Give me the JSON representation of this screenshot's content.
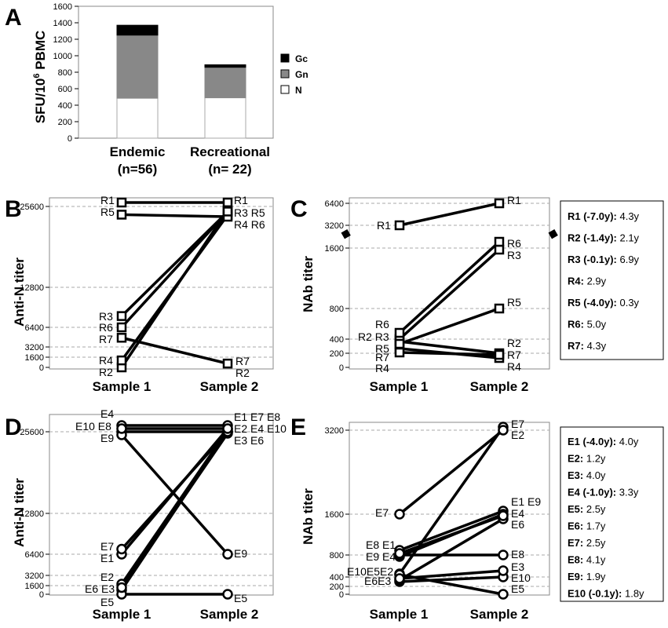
{
  "chart_data": [
    {
      "panel": "A",
      "type": "bar",
      "stacked": true,
      "ylabel": "SFU/10^6 PBMC",
      "ylabel_parts": [
        "SFU/10",
        "6",
        " PBMC"
      ],
      "ylim": [
        0,
        1600
      ],
      "yticks": [
        "0",
        "200",
        "400",
        "600",
        "800",
        "1000",
        "1200",
        "1400",
        "1600"
      ],
      "categories": [
        "Endemic\n(n=56)",
        "Recreational\n(n= 22)"
      ],
      "category_lines": [
        [
          "Endemic",
          "(n=56)"
        ],
        [
          "Recreational",
          "(n= 22)"
        ]
      ],
      "series": [
        {
          "name": "N",
          "values": [
            485,
            490
          ],
          "color": "#ffffff"
        },
        {
          "name": "Gn",
          "values": [
            765,
            370
          ],
          "color": "#888888"
        },
        {
          "name": "Gc",
          "values": [
            120,
            30
          ],
          "color": "#000000"
        }
      ],
      "legend_order": [
        "Gc",
        "Gn",
        "N"
      ],
      "grid": false,
      "legend_position": "right"
    },
    {
      "panel": "B",
      "type": "line",
      "marker": "square",
      "ylabel": "Anti-N titer",
      "yticks": [
        "0",
        "1600",
        "3200",
        "6400",
        "12800",
        "25600"
      ],
      "x": [
        "Sample 1",
        "Sample 2"
      ],
      "series": [
        {
          "name": "R1",
          "values": [
            25600,
            25600
          ],
          "label1": "R1",
          "label2": "R1"
        },
        {
          "name": "R2",
          "values": [
            0,
            25000
          ],
          "label1": "R2",
          "label2": ""
        },
        {
          "name": "R3",
          "values": [
            7200,
            25000
          ],
          "label1": "R3",
          "label2": "R3"
        },
        {
          "name": "R4",
          "values": [
            600,
            25000
          ],
          "label1": "R4",
          "label2": "R4"
        },
        {
          "name": "R5",
          "values": [
            24800,
            24600
          ],
          "label1": "R5",
          "label2": "R5"
        },
        {
          "name": "R6",
          "values": [
            6400,
            24800
          ],
          "label1": "R6",
          "label2": "R6"
        },
        {
          "name": "R7",
          "values": [
            5600,
            600
          ],
          "label1": "R7",
          "label2": "R7"
        }
      ],
      "grid": true
    },
    {
      "panel": "C",
      "type": "line",
      "marker": "square",
      "ylabel": "NAb titer",
      "yticks": [
        "0",
        "200",
        "400",
        "800",
        "1600",
        "3200",
        "6400"
      ],
      "x": [
        "Sample 1",
        "Sample 2"
      ],
      "series": [
        {
          "name": "R1",
          "values": [
            3200,
            6400
          ],
          "label1": "R1",
          "label2": "R1"
        },
        {
          "name": "R2",
          "values": [
            400,
            200
          ],
          "label1": "R2",
          "label2": "R2"
        },
        {
          "name": "R3",
          "values": [
            400,
            1600
          ],
          "label1": "R3",
          "label2": "R3"
        },
        {
          "name": "R4",
          "values": [
            200,
            200
          ],
          "label1": "R4",
          "label2": "R4"
        },
        {
          "name": "R5",
          "values": [
            400,
            800
          ],
          "label1": "R5",
          "label2": "R5"
        },
        {
          "name": "R6",
          "values": [
            400,
            1600
          ],
          "label1": "R6",
          "label2": "R6"
        },
        {
          "name": "R7",
          "values": [
            200,
            200
          ],
          "label1": "R7",
          "label2": "R7"
        }
      ],
      "grid": true
    },
    {
      "panel": "D",
      "type": "line",
      "marker": "circle",
      "ylabel": "Anti-N titer",
      "yticks": [
        "0",
        "1600",
        "3200",
        "6400",
        "12800",
        "25600"
      ],
      "x": [
        "Sample 1",
        "Sample 2"
      ],
      "series": [
        {
          "name": "E1",
          "values": [
            6400,
            25600
          ]
        },
        {
          "name": "E2",
          "values": [
            1600,
            25600
          ]
        },
        {
          "name": "E3",
          "values": [
            800,
            25600
          ]
        },
        {
          "name": "E4",
          "values": [
            25600,
            25600
          ]
        },
        {
          "name": "E5",
          "values": [
            0,
            0
          ]
        },
        {
          "name": "E6",
          "values": [
            800,
            25600
          ]
        },
        {
          "name": "E7",
          "values": [
            7200,
            25600
          ]
        },
        {
          "name": "E8",
          "values": [
            25600,
            25600
          ]
        },
        {
          "name": "E9",
          "values": [
            25600,
            6400
          ]
        },
        {
          "name": "E10",
          "values": [
            25600,
            25600
          ]
        }
      ],
      "grid": true
    },
    {
      "panel": "E",
      "type": "line",
      "marker": "circle",
      "ylabel": "NAb titer",
      "yticks": [
        "0",
        "200",
        "400",
        "800",
        "1600",
        "3200"
      ],
      "x": [
        "Sample 1",
        "Sample 2"
      ],
      "series": [
        {
          "name": "E1",
          "values": [
            800,
            1600
          ]
        },
        {
          "name": "E2",
          "values": [
            400,
            3200
          ]
        },
        {
          "name": "E3",
          "values": [
            400,
            400
          ]
        },
        {
          "name": "E4",
          "values": [
            800,
            1600
          ]
        },
        {
          "name": "E5",
          "values": [
            400,
            200
          ]
        },
        {
          "name": "E6",
          "values": [
            400,
            1600
          ]
        },
        {
          "name": "E7",
          "values": [
            1600,
            3200
          ]
        },
        {
          "name": "E8",
          "values": [
            800,
            800
          ]
        },
        {
          "name": "E9",
          "values": [
            800,
            1600
          ]
        },
        {
          "name": "E10",
          "values": [
            400,
            400
          ]
        }
      ],
      "grid": true
    }
  ],
  "panel_letters": [
    "A",
    "B",
    "C",
    "D",
    "E"
  ],
  "box_C": [
    {
      "bold": "R1 (-7.0y):",
      "rest": " 4.3y"
    },
    {
      "bold": "R2 (-1.4y):",
      "rest": " 2.1y"
    },
    {
      "bold": "R3 (-0.1y):",
      "rest": " 6.9y"
    },
    {
      "bold": "R4:",
      "rest": " 2.9y"
    },
    {
      "bold": "R5 (-4.0y):",
      "rest": " 0.3y"
    },
    {
      "bold": "R6:",
      "rest": " 5.0y"
    },
    {
      "bold": "R7:",
      "rest": " 4.3y"
    }
  ],
  "box_E": [
    {
      "bold": "E1 (-4.0y):",
      "rest": " 4.0y"
    },
    {
      "bold": "E2:",
      "rest": " 1.2y"
    },
    {
      "bold": "E3:",
      "rest": " 4.0y"
    },
    {
      "bold": "E4 (-1.0y):",
      "rest": " 3.3y"
    },
    {
      "bold": "E5:",
      "rest": " 2.5y"
    },
    {
      "bold": "E6:",
      "rest": " 1.7y"
    },
    {
      "bold": "E7:",
      "rest": " 2.5y"
    },
    {
      "bold": "E8:",
      "rest": " 4.1y"
    },
    {
      "bold": "E9:",
      "rest": " 1.9y"
    },
    {
      "bold": "E10 (-0.1y):",
      "rest": " 1.8y"
    }
  ]
}
